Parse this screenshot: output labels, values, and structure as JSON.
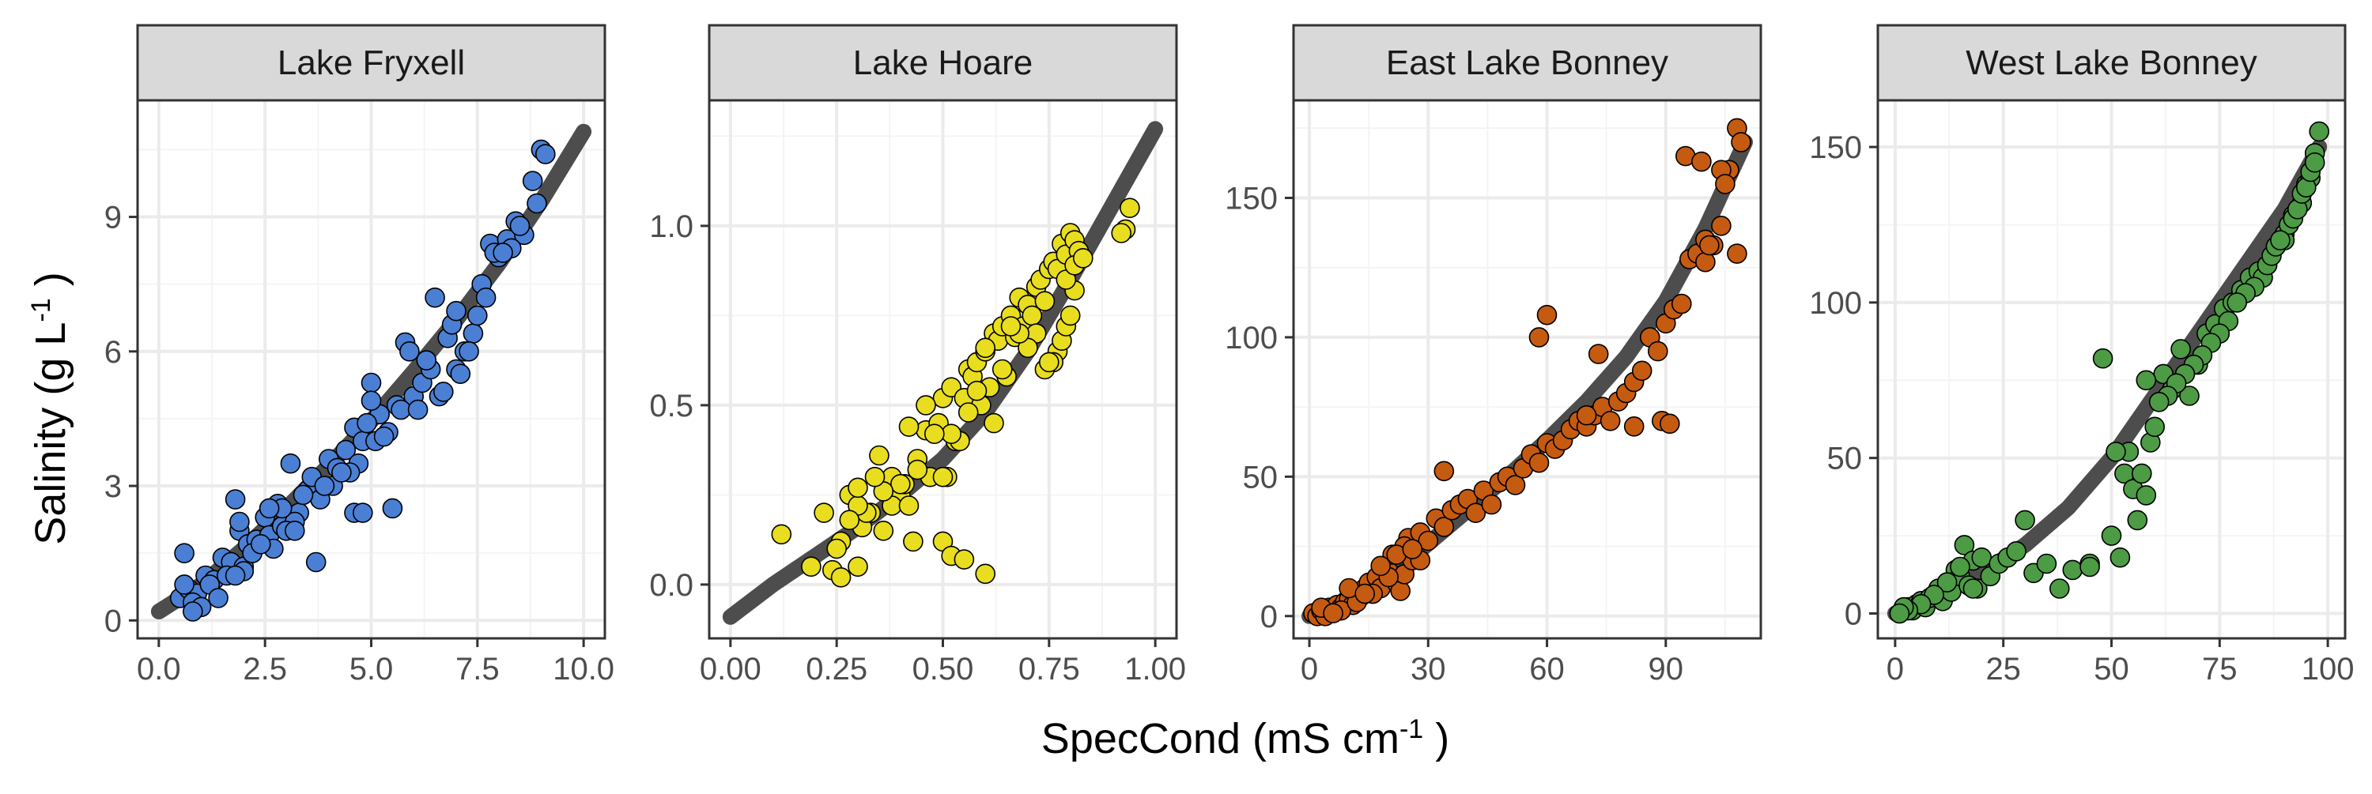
{
  "colors": {
    "fit_line": "#4d4d4d",
    "panel_border": "#333333",
    "strip_fill": "#d9d9d9",
    "grid_major": "#ebebeb",
    "grid_minor": "#f4f4f4"
  },
  "axes": {
    "x_title_main": "SpecCond (mS cm",
    "x_title_sup": "-1",
    "x_title_end": " )",
    "y_title_main": "Salinity (g L",
    "y_title_sup": "-1",
    "y_title_end": " )"
  },
  "chart_data": [
    {
      "type": "scatter",
      "title": "Lake Fryxell",
      "point_color": "#4a7fd4",
      "xlim": [
        -0.5,
        10.5
      ],
      "ylim": [
        -0.4,
        11.6
      ],
      "xticks": [
        0,
        2.5,
        5,
        7.5,
        10
      ],
      "xtick_labels": [
        "0.0",
        "2.5",
        "5.0",
        "7.5",
        "10.0"
      ],
      "yticks": [
        0,
        3,
        6,
        9
      ],
      "ytick_labels": [
        "0",
        "3",
        "6",
        "9"
      ],
      "fit": {
        "x": [
          0,
          1,
          2,
          3,
          4,
          5,
          6,
          7,
          8,
          9,
          10
        ],
        "y": [
          0.2,
          0.8,
          1.6,
          2.5,
          3.45,
          4.45,
          5.55,
          6.7,
          7.95,
          9.35,
          10.9
        ]
      },
      "points": {
        "x": [
          0.5,
          0.7,
          0.6,
          0.9,
          1.1,
          1.3,
          0.8,
          1.5,
          1.7,
          1.2,
          1.9,
          2.1,
          2.0,
          2.3,
          1.8,
          2.5,
          2.6,
          2.2,
          2.8,
          2.9,
          3.1,
          3.3,
          2.7,
          3.5,
          3.6,
          3.8,
          4.0,
          3.2,
          4.2,
          4.4,
          4.1,
          4.6,
          4.8,
          5.0,
          4.7,
          5.2,
          5.4,
          5.6,
          5.1,
          5.8,
          6.0,
          6.2,
          5.9,
          6.4,
          6.6,
          6.8,
          6.5,
          7.0,
          7.2,
          7.4,
          7.1,
          7.6,
          7.8,
          8.0,
          7.7,
          8.2,
          8.4,
          8.6,
          8.3,
          8.8,
          9.0,
          9.1,
          8.9,
          1.0,
          1.6,
          2.4,
          3.0,
          3.4,
          3.9,
          4.5,
          4.9,
          5.3,
          5.7,
          6.3,
          6.7,
          7.3,
          7.9,
          8.5,
          2.9,
          4.3,
          0.6,
          1.4,
          2.0,
          3.7,
          4.6,
          5.5,
          6.1,
          7.5,
          1.8,
          2.6,
          4.8,
          6.9,
          8.1,
          0.8,
          1.9,
          3.2,
          5.0,
          7.0
        ],
        "y": [
          0.5,
          0.7,
          1.5,
          0.6,
          1.0,
          0.9,
          0.4,
          1.4,
          1.3,
          0.8,
          2.0,
          1.7,
          1.2,
          1.8,
          2.7,
          2.3,
          1.9,
          1.5,
          2.6,
          2.1,
          3.5,
          2.4,
          1.6,
          2.9,
          3.2,
          2.7,
          3.6,
          2.2,
          3.4,
          3.8,
          3.0,
          4.3,
          4.0,
          5.3,
          3.5,
          4.6,
          4.2,
          4.8,
          4.0,
          6.2,
          5.0,
          5.3,
          6.0,
          5.6,
          5.0,
          6.3,
          7.2,
          5.6,
          6.0,
          6.4,
          5.5,
          7.5,
          8.4,
          8.1,
          7.2,
          8.5,
          8.9,
          8.6,
          8.3,
          9.8,
          10.5,
          10.4,
          9.3,
          0.3,
          1.0,
          1.7,
          2.0,
          2.8,
          3.0,
          3.3,
          4.4,
          4.1,
          4.7,
          5.8,
          5.1,
          6.0,
          8.2,
          8.8,
          2.5,
          3.3,
          0.8,
          0.5,
          1.1,
          1.3,
          2.4,
          2.5,
          4.7,
          6.8,
          1.0,
          2.5,
          2.4,
          6.6,
          8.2,
          0.2,
          2.2,
          2.0,
          4.9,
          6.9
        ]
      }
    },
    {
      "type": "scatter",
      "title": "Lake Hoare",
      "point_color": "#e8dd1e",
      "xlim": [
        -0.05,
        1.05
      ],
      "ylim": [
        -0.15,
        1.35
      ],
      "xticks": [
        0,
        0.25,
        0.5,
        0.75,
        1.0
      ],
      "xtick_labels": [
        "0.00",
        "0.25",
        "0.50",
        "0.75",
        "1.00"
      ],
      "yticks": [
        0,
        0.5,
        1.0
      ],
      "ytick_labels": [
        "0.0",
        "0.5",
        "1.0"
      ],
      "fit": {
        "x": [
          0,
          0.1,
          0.2,
          0.3,
          0.4,
          0.5,
          0.6,
          0.7,
          0.8,
          0.9,
          1.0
        ],
        "y": [
          -0.09,
          0.0,
          0.08,
          0.16,
          0.25,
          0.35,
          0.48,
          0.65,
          0.85,
          1.06,
          1.27
        ]
      },
      "points": {
        "x": [
          0.12,
          0.19,
          0.22,
          0.24,
          0.26,
          0.28,
          0.3,
          0.31,
          0.33,
          0.35,
          0.36,
          0.38,
          0.4,
          0.41,
          0.43,
          0.44,
          0.46,
          0.47,
          0.49,
          0.5,
          0.51,
          0.52,
          0.53,
          0.55,
          0.56,
          0.57,
          0.58,
          0.59,
          0.6,
          0.61,
          0.62,
          0.63,
          0.64,
          0.65,
          0.66,
          0.67,
          0.68,
          0.69,
          0.7,
          0.71,
          0.72,
          0.73,
          0.74,
          0.75,
          0.76,
          0.77,
          0.78,
          0.79,
          0.8,
          0.81,
          0.82,
          0.77,
          0.78,
          0.79,
          0.8,
          0.81,
          0.76,
          0.74,
          0.72,
          0.7,
          0.68,
          0.66,
          0.64,
          0.62,
          0.6,
          0.58,
          0.56,
          0.54,
          0.52,
          0.5,
          0.48,
          0.46,
          0.44,
          0.42,
          0.4,
          0.38,
          0.36,
          0.34,
          0.32,
          0.3,
          0.28,
          0.26,
          0.25,
          0.3,
          0.42,
          0.5,
          0.52,
          0.55,
          0.6,
          0.75,
          0.93,
          0.94,
          0.92,
          0.79,
          0.81,
          0.83
        ],
        "y": [
          0.14,
          0.05,
          0.2,
          0.04,
          0.02,
          0.25,
          0.05,
          0.16,
          0.2,
          0.36,
          0.15,
          0.3,
          0.25,
          0.28,
          0.12,
          0.35,
          0.43,
          0.3,
          0.45,
          0.52,
          0.3,
          0.55,
          0.4,
          0.52,
          0.6,
          0.58,
          0.62,
          0.5,
          0.65,
          0.55,
          0.7,
          0.68,
          0.72,
          0.58,
          0.75,
          0.69,
          0.8,
          0.72,
          0.78,
          0.75,
          0.83,
          0.85,
          0.79,
          0.88,
          0.9,
          0.88,
          0.95,
          0.92,
          0.98,
          0.96,
          0.93,
          0.65,
          0.68,
          0.72,
          0.75,
          0.82,
          0.62,
          0.6,
          0.7,
          0.66,
          0.7,
          0.72,
          0.6,
          0.45,
          0.66,
          0.54,
          0.48,
          0.4,
          0.42,
          0.3,
          0.42,
          0.5,
          0.32,
          0.44,
          0.28,
          0.22,
          0.26,
          0.3,
          0.2,
          0.22,
          0.18,
          0.12,
          0.1,
          0.27,
          0.22,
          0.12,
          0.08,
          0.07,
          0.03,
          0.62,
          0.99,
          1.05,
          0.98,
          0.85,
          0.89,
          0.91
        ]
      }
    },
    {
      "type": "scatter",
      "title": "East Lake Bonney",
      "point_color": "#c55a11",
      "xlim": [
        -4,
        114
      ],
      "ylim": [
        -8,
        185
      ],
      "xticks": [
        0,
        30,
        60,
        90
      ],
      "xtick_labels": [
        "0",
        "30",
        "60",
        "90"
      ],
      "yticks": [
        0,
        50,
        100,
        150
      ],
      "ytick_labels": [
        "0",
        "50",
        "100",
        "150"
      ],
      "fit": {
        "x": [
          0,
          10,
          20,
          30,
          40,
          50,
          60,
          70,
          80,
          90,
          100,
          110
        ],
        "y": [
          0,
          6,
          14,
          26,
          38,
          50,
          63,
          77,
          93,
          113,
          139,
          170
        ]
      },
      "points": {
        "x": [
          1,
          2,
          3,
          4,
          5,
          6,
          7,
          8,
          9,
          10,
          11,
          12,
          13,
          14,
          15,
          16,
          17,
          18,
          19,
          20,
          21,
          22,
          23,
          24,
          25,
          26,
          28,
          30,
          32,
          34,
          36,
          38,
          40,
          42,
          44,
          46,
          48,
          50,
          52,
          54,
          56,
          58,
          60,
          62,
          64,
          66,
          68,
          70,
          72,
          74,
          76,
          78,
          80,
          82,
          84,
          86,
          88,
          90,
          92,
          94,
          96,
          98,
          100,
          102,
          104,
          106,
          108,
          4,
          8,
          12,
          16,
          20,
          24,
          28,
          34,
          58,
          60,
          70,
          73,
          82,
          89,
          91,
          95,
          99,
          100,
          101,
          104,
          105,
          108,
          109,
          3,
          6,
          10,
          14,
          18,
          22,
          26
        ],
        "y": [
          1,
          0,
          2,
          1,
          3,
          2,
          4,
          3,
          5,
          6,
          4,
          8,
          7,
          10,
          12,
          8,
          14,
          10,
          18,
          16,
          22,
          12,
          9,
          15,
          28,
          20,
          30,
          27,
          35,
          32,
          38,
          40,
          42,
          37,
          45,
          40,
          48,
          50,
          47,
          53,
          58,
          55,
          62,
          60,
          63,
          67,
          70,
          68,
          72,
          75,
          70,
          77,
          80,
          84,
          88,
          100,
          95,
          105,
          110,
          112,
          128,
          130,
          135,
          133,
          140,
          160,
          175,
          0,
          2,
          5,
          8,
          14,
          25,
          20,
          52,
          100,
          108,
          72,
          94,
          68,
          70,
          69,
          165,
          163,
          127,
          133,
          160,
          155,
          130,
          170,
          3,
          1,
          10,
          8,
          18,
          22,
          24
        ]
      }
    },
    {
      "type": "scatter",
      "title": "West Lake Bonney",
      "point_color": "#4d9b45",
      "xlim": [
        -4,
        104
      ],
      "ylim": [
        -8,
        165
      ],
      "xticks": [
        0,
        25,
        50,
        75,
        100
      ],
      "xtick_labels": [
        "0",
        "25",
        "50",
        "75",
        "100"
      ],
      "yticks": [
        0,
        50,
        100,
        150
      ],
      "ytick_labels": [
        "0",
        "50",
        "100",
        "150"
      ],
      "fit": {
        "x": [
          0,
          10,
          20,
          30,
          40,
          50,
          60,
          70,
          80,
          90,
          98
        ],
        "y": [
          0,
          6,
          13,
          22,
          34,
          50,
          70,
          90,
          110,
          130,
          150
        ]
      },
      "points": {
        "x": [
          1,
          2,
          3,
          4,
          5,
          6,
          7,
          8,
          9,
          10,
          11,
          12,
          13,
          14,
          15,
          16,
          17,
          18,
          19,
          20,
          22,
          24,
          26,
          28,
          30,
          32,
          35,
          38,
          41,
          45,
          48,
          50,
          52,
          53,
          54,
          55,
          56,
          57,
          58,
          59,
          60,
          62,
          64,
          66,
          68,
          70,
          72,
          74,
          76,
          78,
          80,
          82,
          84,
          86,
          88,
          90,
          92,
          94,
          95,
          96,
          97,
          98,
          90,
          91,
          92,
          93,
          94,
          95,
          96,
          97,
          85,
          86,
          87,
          88,
          89,
          83,
          81,
          79,
          77,
          75,
          73,
          71,
          69,
          67,
          65,
          63,
          61,
          12,
          15,
          18,
          9,
          6,
          3,
          2,
          1,
          45,
          51,
          58
        ],
        "y": [
          0,
          1,
          2,
          1,
          3,
          4,
          2,
          5,
          6,
          8,
          4,
          10,
          7,
          14,
          12,
          22,
          9,
          17,
          8,
          18,
          12,
          16,
          18,
          20,
          30,
          13,
          16,
          8,
          14,
          16,
          82,
          25,
          18,
          45,
          52,
          40,
          30,
          45,
          38,
          55,
          60,
          77,
          72,
          85,
          70,
          80,
          90,
          93,
          98,
          100,
          104,
          108,
          110,
          112,
          118,
          122,
          128,
          132,
          138,
          140,
          148,
          155,
          120,
          125,
          127,
          130,
          135,
          137,
          142,
          145,
          108,
          112,
          115,
          118,
          120,
          105,
          103,
          100,
          94,
          90,
          87,
          83,
          80,
          77,
          74,
          70,
          68,
          10,
          15,
          8,
          6,
          3,
          1,
          2,
          0,
          15,
          52,
          75
        ]
      }
    }
  ]
}
